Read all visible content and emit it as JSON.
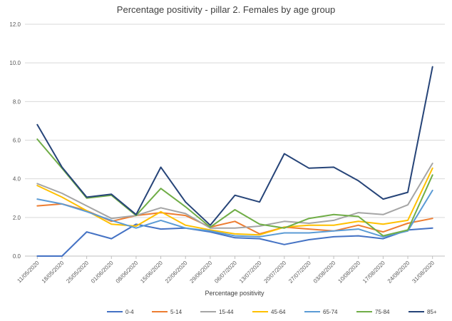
{
  "chart_data": {
    "type": "line",
    "title": "Percentage positivity - pillar 2. Females by age group",
    "xlabel": "Percentage positivity",
    "ylabel": "",
    "ylim": [
      0,
      12
    ],
    "yticks": [
      "0.0",
      "2.0",
      "4.0",
      "6.0",
      "8.0",
      "10.0",
      "12.0"
    ],
    "grid": true,
    "legend_position": "bottom",
    "categories": [
      "11/05/2020",
      "18/05/2020",
      "25/05/2020",
      "01/06/2020",
      "08/06/2020",
      "15/06/2020",
      "22/06/2020",
      "29/06/2020",
      "06/07/2020",
      "13/07/2020",
      "20/07/2020",
      "27/07/2020",
      "03/08/2020",
      "10/08/2020",
      "17/08/2020",
      "24/08/2020",
      "31/08/2020"
    ],
    "series": [
      {
        "name": "0-4",
        "color": "#4472C4",
        "values": [
          0.0,
          0.0,
          1.25,
          0.9,
          1.65,
          1.4,
          1.45,
          1.25,
          0.95,
          0.9,
          0.6,
          0.85,
          1.0,
          1.05,
          0.9,
          1.35,
          1.45
        ]
      },
      {
        "name": "5-14",
        "color": "#ED7D31",
        "values": [
          2.6,
          2.7,
          2.35,
          1.8,
          2.1,
          2.25,
          2.1,
          1.5,
          1.8,
          1.15,
          1.5,
          1.4,
          1.3,
          1.6,
          1.25,
          1.7,
          1.95
        ]
      },
      {
        "name": "15-44",
        "color": "#A5A5A5",
        "values": [
          3.75,
          3.25,
          2.6,
          1.95,
          2.1,
          2.5,
          2.2,
          1.45,
          1.45,
          1.55,
          1.8,
          1.7,
          1.85,
          2.25,
          2.15,
          2.65,
          4.8
        ]
      },
      {
        "name": "45-64",
        "color": "#FFC000",
        "values": [
          3.65,
          3.05,
          2.35,
          1.65,
          1.55,
          2.3,
          1.6,
          1.35,
          1.15,
          1.1,
          1.5,
          1.6,
          1.6,
          1.8,
          1.65,
          1.85,
          4.55
        ]
      },
      {
        "name": "65-74",
        "color": "#5B9BD5",
        "values": [
          2.95,
          2.7,
          2.3,
          1.85,
          1.45,
          1.85,
          1.45,
          1.3,
          1.05,
          1.0,
          1.2,
          1.2,
          1.3,
          1.4,
          1.0,
          1.3,
          3.4
        ]
      },
      {
        "name": "75-84",
        "color": "#70AD47",
        "values": [
          6.05,
          4.55,
          3.0,
          3.15,
          2.1,
          3.5,
          2.55,
          1.5,
          2.4,
          1.65,
          1.45,
          1.95,
          2.15,
          2.05,
          1.05,
          1.35,
          4.2
        ]
      },
      {
        "name": "85+",
        "color": "#264478",
        "values": [
          6.8,
          4.6,
          3.05,
          3.2,
          2.15,
          4.6,
          2.8,
          1.6,
          3.15,
          2.8,
          5.3,
          4.55,
          4.6,
          3.9,
          2.95,
          3.3,
          9.8
        ]
      }
    ]
  }
}
